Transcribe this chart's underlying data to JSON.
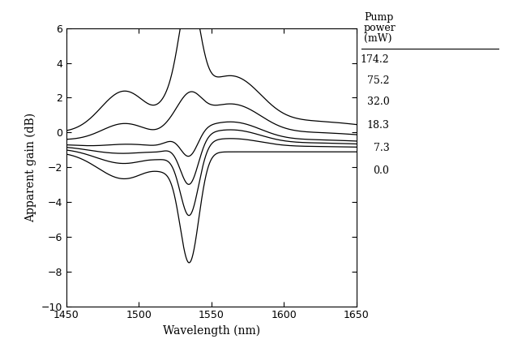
{
  "xlabel": "Wavelength (nm)",
  "ylabel": "Apparent gain (dB)",
  "xlim": [
    1450,
    1650
  ],
  "ylim": [
    -10,
    6
  ],
  "yticks": [
    -10,
    -8,
    -6,
    -4,
    -2,
    0,
    2,
    4,
    6
  ],
  "xticks": [
    1450,
    1500,
    1550,
    1600,
    1650
  ],
  "legend_title_line1": "Pump",
  "legend_title_line2": "power",
  "legend_title_line3": "(mW)",
  "pump_powers": [
    "174.2",
    "75.2",
    "32.0",
    "18.3",
    "7.3",
    "0.0"
  ],
  "pump_powers_val": [
    174.2,
    75.2,
    32.0,
    18.3,
    7.3,
    0.0
  ],
  "bg_color": "#ffffff",
  "line_color": "#000000"
}
